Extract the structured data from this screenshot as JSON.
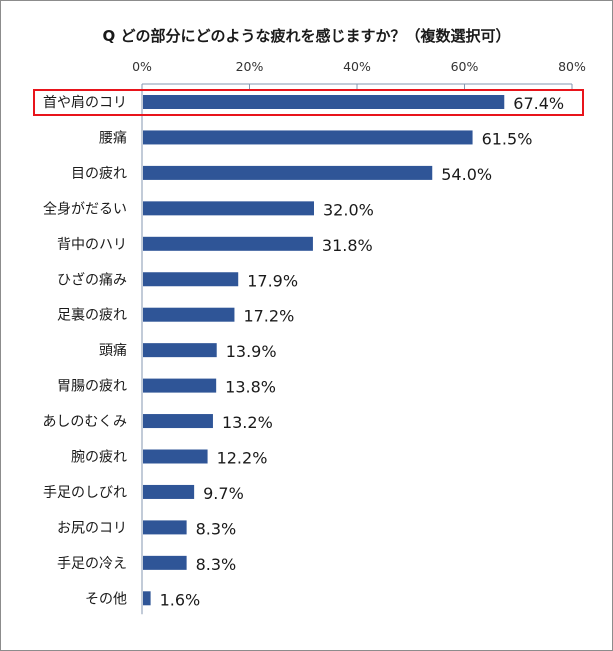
{
  "chart_data": {
    "type": "bar",
    "orientation": "horizontal",
    "title": "Q どの部分にどのような疲れを感じますか？（複数選択可）",
    "xlabel": "",
    "ylabel": "",
    "xlim": [
      0,
      80
    ],
    "xticks": [
      "0%",
      "20%",
      "40%",
      "60%",
      "80%"
    ],
    "xtick_values": [
      0,
      20,
      40,
      60,
      80
    ],
    "axis_position": "top",
    "grid": false,
    "bar_color": "#2F5597",
    "highlight_color": "#E8141B",
    "highlighted_category": "首や肩のコリ",
    "categories": [
      "首や肩のコリ",
      "腰痛",
      "目の疲れ",
      "全身がだるい",
      "背中のハリ",
      "ひざの痛み",
      "足裏の疲れ",
      "頭痛",
      "胃腸の疲れ",
      "あしのむくみ",
      "腕の疲れ",
      "手足のしびれ",
      "お尻のコリ",
      "手足の冷え",
      "その他"
    ],
    "values": [
      67.4,
      61.5,
      54.0,
      32.0,
      31.8,
      17.9,
      17.2,
      13.9,
      13.8,
      13.2,
      12.2,
      9.7,
      8.3,
      8.3,
      1.6
    ],
    "data_labels": [
      "67.4%",
      "61.5%",
      "54.0%",
      "32.0%",
      "31.8%",
      "17.9%",
      "17.2%",
      "13.9%",
      "13.8%",
      "13.2%",
      "12.2%",
      "9.7%",
      "8.3%",
      "8.3%",
      "1.6%"
    ]
  }
}
